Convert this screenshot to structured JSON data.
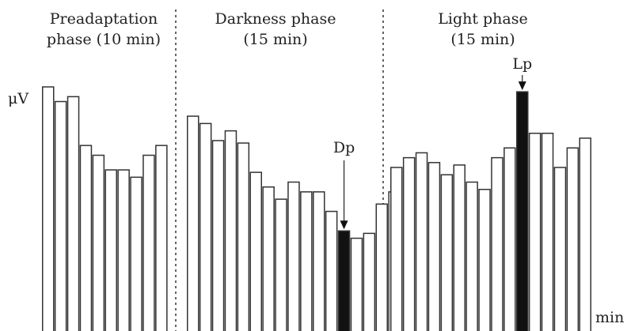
{
  "chart_data": {
    "type": "bar",
    "ylabel": "μV",
    "xlabel": "min",
    "phases": [
      {
        "name_line1": "Preadaptation",
        "name_line2": "phase (10 min)"
      },
      {
        "name_line1": "Darkness phase",
        "name_line2": "(15 min)"
      },
      {
        "name_line1": "Light phase",
        "name_line2": "(15 min)"
      }
    ],
    "series": [
      {
        "phase": 0,
        "values": [
          100,
          94,
          96,
          76,
          72,
          66,
          66,
          63,
          72,
          76
        ]
      },
      {
        "phase": 1,
        "values": [
          88,
          85,
          78,
          82,
          77,
          65,
          59,
          54,
          61,
          57,
          57,
          49,
          41,
          38,
          40,
          52,
          57
        ]
      },
      {
        "phase": 2,
        "values": [
          67,
          71,
          73,
          69,
          64,
          68,
          61,
          58,
          71,
          75,
          98,
          81,
          81,
          67,
          75,
          79
        ]
      }
    ],
    "highlighted": [
      {
        "label": "Dp",
        "phase": 1,
        "index": 12
      },
      {
        "label": "Lp",
        "phase": 2,
        "index": 10
      }
    ]
  }
}
